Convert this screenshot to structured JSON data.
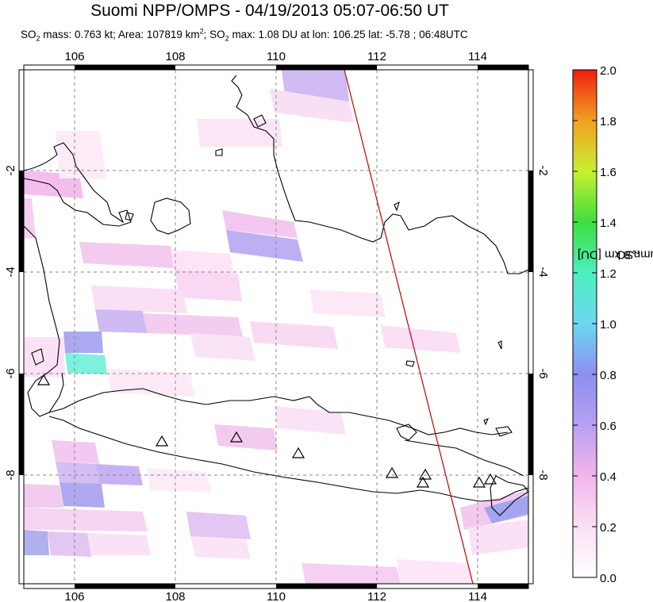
{
  "title": "Suomi NPP/OMPS - 04/19/2013 05:07-06:50 UT",
  "subtitle": {
    "so2_mass_label": "SO",
    "so2_mass_rest": " mass: 0.763 kt; Area: 107819 km",
    "area_sup": "2",
    "max_label": "; SO",
    "max_rest": " max: 1.08 DU at lon: 106.25 lat: -5.78 ; 06:48UTC",
    "sub2": "2"
  },
  "colorbar": {
    "label_pre": "SO",
    "label_sub": "2",
    "label_post": " column 8 km [DU]",
    "ticks": [
      "0.0",
      "0.2",
      "0.4",
      "0.6",
      "0.8",
      "1.0",
      "1.2",
      "1.4",
      "1.6",
      "1.8",
      "2.0"
    ],
    "range": [
      0.0,
      2.0
    ]
  },
  "map": {
    "lon_ticks": [
      "106",
      "108",
      "110",
      "112",
      "114"
    ],
    "lat_ticks": [
      "-2",
      "-4",
      "-6",
      "-8"
    ],
    "lon_range": [
      105,
      115
    ],
    "lat_range": [
      -10,
      -0.1
    ],
    "orbit_line_color": "#cc0000",
    "coastline_color": "#000000",
    "volcano_marker": "triangle-icon"
  }
}
